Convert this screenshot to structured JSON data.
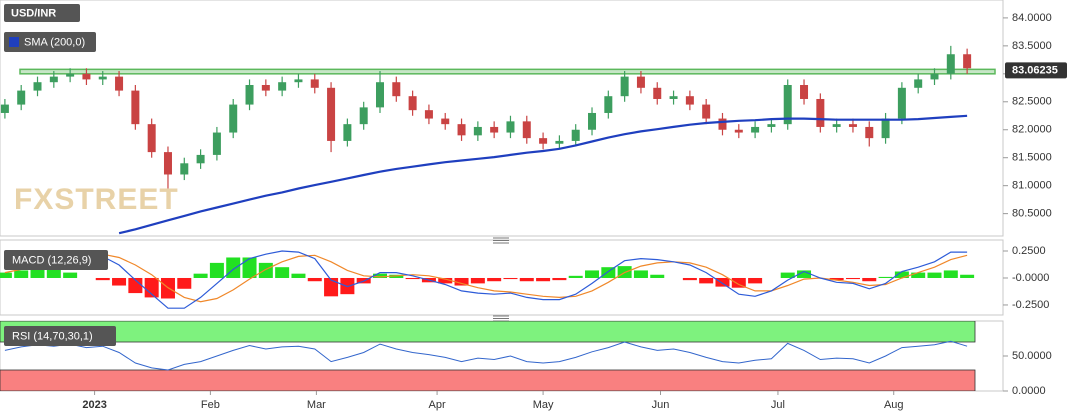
{
  "chart_data": [
    {
      "type": "candlestick",
      "title": "USD/INR",
      "watermark": "FXSTREET",
      "up_color": "#3d9e5f",
      "down_color": "#c94343",
      "open": [
        82.3,
        82.45,
        82.7,
        82.85,
        82.95,
        83.0,
        82.9,
        82.95,
        82.7,
        82.1,
        81.6,
        81.2,
        81.4,
        81.55,
        81.95,
        82.45,
        82.8,
        82.7,
        82.85,
        82.9,
        82.75,
        81.8,
        82.1,
        82.4,
        82.85,
        82.6,
        82.35,
        82.2,
        82.1,
        81.9,
        82.05,
        81.95,
        82.15,
        81.85,
        81.75,
        81.8,
        82.0,
        82.3,
        82.6,
        82.95,
        82.75,
        82.55,
        82.6,
        82.45,
        82.2,
        82.0,
        81.95,
        82.05,
        82.1,
        82.8,
        82.55,
        82.05,
        82.1,
        82.05,
        81.85,
        82.2,
        82.75,
        82.9,
        83.0,
        83.35
      ],
      "high": [
        82.55,
        82.8,
        82.95,
        83.05,
        83.1,
        83.1,
        83.05,
        83.05,
        82.8,
        82.2,
        81.7,
        81.5,
        81.65,
        82.05,
        82.55,
        82.9,
        82.9,
        82.95,
        83.0,
        83.0,
        82.85,
        82.2,
        82.5,
        83.05,
        82.95,
        82.7,
        82.45,
        82.3,
        82.2,
        82.15,
        82.15,
        82.25,
        82.25,
        81.95,
        81.9,
        82.1,
        82.4,
        82.7,
        83.05,
        83.05,
        82.85,
        82.7,
        82.7,
        82.55,
        82.3,
        82.1,
        82.15,
        82.2,
        82.9,
        82.9,
        82.65,
        82.2,
        82.2,
        82.15,
        82.3,
        82.85,
        83.0,
        83.1,
        83.5,
        83.45
      ],
      "low": [
        82.2,
        82.35,
        82.6,
        82.75,
        82.85,
        82.8,
        82.8,
        82.6,
        82.0,
        81.5,
        80.95,
        81.1,
        81.3,
        81.45,
        81.85,
        82.35,
        82.6,
        82.6,
        82.75,
        82.65,
        81.6,
        81.7,
        82.0,
        82.3,
        82.5,
        82.25,
        82.1,
        82.0,
        81.8,
        81.8,
        81.85,
        81.85,
        81.75,
        81.65,
        81.65,
        81.7,
        81.9,
        82.2,
        82.5,
        82.65,
        82.45,
        82.45,
        82.35,
        82.1,
        81.9,
        81.85,
        81.85,
        81.95,
        82.0,
        82.45,
        81.95,
        81.95,
        81.95,
        81.7,
        81.75,
        82.1,
        82.65,
        82.8,
        82.9,
        83.0
      ],
      "close": [
        82.45,
        82.7,
        82.85,
        82.95,
        83.0,
        82.9,
        82.95,
        82.7,
        82.1,
        81.6,
        81.2,
        81.4,
        81.55,
        81.95,
        82.45,
        82.8,
        82.7,
        82.85,
        82.9,
        82.75,
        81.8,
        82.1,
        82.4,
        82.85,
        82.6,
        82.35,
        82.2,
        82.1,
        81.9,
        82.05,
        81.95,
        82.15,
        81.85,
        81.75,
        81.8,
        82.0,
        82.3,
        82.6,
        82.95,
        82.75,
        82.55,
        82.6,
        82.45,
        82.2,
        82.0,
        81.95,
        82.05,
        82.1,
        82.8,
        82.55,
        82.05,
        82.1,
        82.05,
        81.85,
        82.2,
        82.75,
        82.9,
        83.0,
        83.35,
        83.1
      ],
      "series": [
        {
          "name": "SMA (200,0)",
          "color": "#1f3fbf",
          "values": [
            null,
            null,
            null,
            null,
            null,
            null,
            null,
            80.15,
            80.22,
            80.3,
            80.38,
            80.46,
            80.54,
            80.61,
            80.68,
            80.75,
            80.82,
            80.88,
            80.95,
            81.01,
            81.07,
            81.13,
            81.19,
            81.25,
            81.3,
            81.34,
            81.38,
            81.42,
            81.45,
            81.48,
            81.51,
            81.55,
            81.59,
            81.62,
            81.66,
            81.72,
            81.79,
            81.86,
            81.92,
            81.97,
            82.01,
            82.05,
            82.09,
            82.12,
            82.14,
            82.16,
            82.17,
            82.19,
            82.2,
            82.2,
            82.19,
            82.18,
            82.18,
            82.18,
            82.18,
            82.18,
            82.19,
            82.21,
            82.23,
            82.25
          ]
        }
      ],
      "band": [
        83.0,
        83.08
      ],
      "band_color": "#5cb85c",
      "last_price": 83.06235,
      "ylim": [
        80.1,
        84.32
      ],
      "yticks": [
        {
          "value": 84,
          "label": "84.0000"
        },
        {
          "value": 83.5,
          "label": "83.5000"
        },
        {
          "value": 83,
          "label": "83.0000"
        },
        {
          "value": 82.5,
          "label": "82.5000"
        },
        {
          "value": 82,
          "label": "82.0000"
        },
        {
          "value": 81.5,
          "label": "81.5000"
        },
        {
          "value": 81,
          "label": "81.0000"
        },
        {
          "value": 80.5,
          "label": "80.5000"
        }
      ]
    },
    {
      "type": "macd",
      "title": "MACD (12,26,9)",
      "macd": {
        "color": "#2d5bd8",
        "values": [
          0.1,
          0.15,
          0.2,
          0.24,
          0.25,
          0.22,
          0.2,
          0.12,
          -0.02,
          -0.15,
          -0.28,
          -0.28,
          -0.18,
          -0.05,
          0.08,
          0.18,
          0.22,
          0.25,
          0.24,
          0.18,
          -0.02,
          -0.08,
          -0.03,
          0.05,
          0.05,
          0.02,
          -0.02,
          -0.06,
          -0.12,
          -0.14,
          -0.15,
          -0.14,
          -0.18,
          -0.2,
          -0.2,
          -0.15,
          -0.05,
          0.06,
          0.16,
          0.18,
          0.17,
          0.15,
          0.12,
          0.05,
          -0.05,
          -0.15,
          -0.17,
          -0.12,
          -0.02,
          0.06,
          0.0,
          -0.04,
          -0.05,
          -0.1,
          -0.05,
          0.06,
          0.1,
          0.15,
          0.24,
          0.24
        ]
      },
      "signal": {
        "color": "#f0882a",
        "values": [
          0.05,
          0.08,
          0.12,
          0.16,
          0.2,
          0.22,
          0.22,
          0.19,
          0.12,
          0.03,
          -0.09,
          -0.18,
          -0.22,
          -0.19,
          -0.11,
          -0.01,
          0.08,
          0.15,
          0.2,
          0.21,
          0.15,
          0.07,
          0.02,
          0.01,
          0.02,
          0.03,
          0.02,
          -0.01,
          -0.05,
          -0.09,
          -0.12,
          -0.13,
          -0.15,
          -0.17,
          -0.18,
          -0.17,
          -0.12,
          -0.04,
          0.05,
          0.11,
          0.14,
          0.15,
          0.14,
          0.1,
          0.03,
          -0.06,
          -0.12,
          -0.12,
          -0.07,
          -0.01,
          0.0,
          -0.02,
          -0.04,
          -0.07,
          -0.06,
          0.0,
          0.05,
          0.1,
          0.17,
          0.21
        ]
      },
      "histogram": {
        "up_color": "#22e022",
        "down_color": "#ff1a1a",
        "values": [
          0.05,
          0.07,
          0.08,
          0.08,
          0.05,
          0.0,
          -0.02,
          -0.07,
          -0.14,
          -0.18,
          -0.19,
          -0.1,
          0.04,
          0.14,
          0.19,
          0.19,
          0.14,
          0.1,
          0.04,
          -0.03,
          -0.17,
          -0.15,
          -0.05,
          0.04,
          0.03,
          -0.01,
          -0.04,
          -0.05,
          -0.07,
          -0.05,
          -0.03,
          -0.01,
          -0.03,
          -0.03,
          -0.02,
          0.02,
          0.07,
          0.1,
          0.11,
          0.07,
          0.03,
          0.0,
          -0.02,
          -0.05,
          -0.08,
          -0.09,
          -0.05,
          0.0,
          0.05,
          0.07,
          0.0,
          -0.02,
          -0.01,
          -0.03,
          0.01,
          0.06,
          0.05,
          0.05,
          0.07,
          0.03
        ]
      },
      "ylim": [
        -0.343,
        0.352
      ],
      "yticks": [
        {
          "value": 0.25,
          "label": "0.2500"
        },
        {
          "value": 0,
          "label": "-0.0000"
        },
        {
          "value": -0.25,
          "label": "-0.2500"
        }
      ]
    },
    {
      "type": "line",
      "title": "RSI (14,70,30,1)",
      "color": "#3366cc",
      "values": [
        58,
        63,
        66,
        64,
        67,
        62,
        64,
        55,
        40,
        33,
        30,
        38,
        42,
        50,
        58,
        65,
        60,
        63,
        64,
        60,
        42,
        48,
        55,
        67,
        60,
        55,
        52,
        48,
        42,
        47,
        45,
        50,
        42,
        40,
        42,
        48,
        56,
        62,
        70,
        63,
        58,
        60,
        55,
        48,
        42,
        40,
        44,
        46,
        68,
        58,
        45,
        47,
        46,
        40,
        50,
        62,
        64,
        66,
        71,
        64
      ],
      "zones": [
        {
          "range": [
            70,
            100
          ],
          "color": "#7ef27e"
        },
        {
          "range": [
            0,
            30
          ],
          "color": "#f98080"
        }
      ],
      "ylim": [
        0,
        100
      ],
      "yticks": [
        {
          "value": 50,
          "label": "50.0000"
        },
        {
          "value": 0,
          "label": "0.0000"
        }
      ],
      "xlim": [
        -0.3,
        61.2
      ],
      "xticks": [
        {
          "value": 5.5,
          "label": "2023"
        },
        {
          "value": 12.6,
          "label": "Feb"
        },
        {
          "value": 19.1,
          "label": "Mar"
        },
        {
          "value": 26.5,
          "label": "Apr"
        },
        {
          "value": 33.0,
          "label": "May"
        },
        {
          "value": 40.2,
          "label": "Jun"
        },
        {
          "value": 47.4,
          "label": "Jul"
        },
        {
          "value": 54.5,
          "label": "Aug"
        }
      ]
    }
  ]
}
